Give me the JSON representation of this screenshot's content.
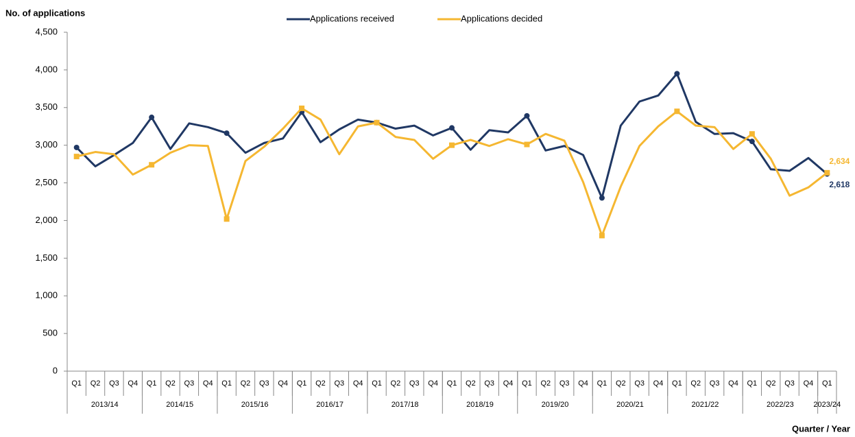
{
  "chart_data": {
    "type": "line",
    "y_axis_label": "No. of applications",
    "x_axis_label": "Quarter / Year",
    "groups": [
      {
        "label": "2013/14",
        "categories": [
          "Q1",
          "Q2",
          "Q3",
          "Q4"
        ]
      },
      {
        "label": "2014/15",
        "categories": [
          "Q1",
          "Q2",
          "Q3",
          "Q4"
        ]
      },
      {
        "label": "2015/16",
        "categories": [
          "Q1",
          "Q2",
          "Q3",
          "Q4"
        ]
      },
      {
        "label": "2016/17",
        "categories": [
          "Q1",
          "Q2",
          "Q3",
          "Q4"
        ]
      },
      {
        "label": "2017/18",
        "categories": [
          "Q1",
          "Q2",
          "Q3",
          "Q4"
        ]
      },
      {
        "label": "2018/19",
        "categories": [
          "Q1",
          "Q2",
          "Q3",
          "Q4"
        ]
      },
      {
        "label": "2019/20",
        "categories": [
          "Q1",
          "Q2",
          "Q3",
          "Q4"
        ]
      },
      {
        "label": "2020/21",
        "categories": [
          "Q1",
          "Q2",
          "Q3",
          "Q4"
        ]
      },
      {
        "label": "2021/22",
        "categories": [
          "Q1",
          "Q2",
          "Q3",
          "Q4"
        ]
      },
      {
        "label": "2022/23",
        "categories": [
          "Q1",
          "Q2",
          "Q3",
          "Q4"
        ]
      },
      {
        "label": "2023/24",
        "categories": [
          "Q1"
        ]
      }
    ],
    "series": [
      {
        "name": "Applications received",
        "color": "#203864",
        "marker": "circle",
        "values": [
          2970,
          2720,
          2870,
          3030,
          3370,
          2950,
          3290,
          3240,
          3160,
          2900,
          3030,
          3090,
          3440,
          3040,
          3210,
          3340,
          3300,
          3220,
          3260,
          3130,
          3230,
          2940,
          3200,
          3170,
          3390,
          2930,
          2990,
          2870,
          2300,
          3260,
          3580,
          3660,
          3950,
          3310,
          3150,
          3160,
          3050,
          2680,
          2660,
          2830,
          2618
        ],
        "value_labels": [
          null,
          null,
          null,
          null,
          null,
          null,
          null,
          null,
          null,
          null,
          null,
          null,
          null,
          null,
          null,
          null,
          null,
          null,
          null,
          null,
          null,
          null,
          null,
          null,
          null,
          null,
          null,
          null,
          null,
          null,
          null,
          null,
          null,
          null,
          null,
          null,
          null,
          null,
          null,
          null,
          "2,618"
        ]
      },
      {
        "name": "Applications decided",
        "color": "#F5B731",
        "marker": "square",
        "values": [
          2850,
          2910,
          2880,
          2610,
          2740,
          2900,
          3000,
          2990,
          2020,
          2790,
          2980,
          3220,
          3490,
          3340,
          2880,
          3250,
          3300,
          3110,
          3070,
          2820,
          3000,
          3070,
          2990,
          3080,
          3010,
          3150,
          3060,
          2510,
          1800,
          2450,
          2990,
          3250,
          3450,
          3260,
          3240,
          2950,
          3150,
          2820,
          2330,
          2440,
          2634
        ],
        "value_labels": [
          null,
          null,
          null,
          null,
          null,
          null,
          null,
          null,
          null,
          null,
          null,
          null,
          null,
          null,
          null,
          null,
          null,
          null,
          null,
          null,
          null,
          null,
          null,
          null,
          null,
          null,
          null,
          null,
          null,
          null,
          null,
          null,
          null,
          null,
          null,
          null,
          null,
          null,
          null,
          null,
          "2,634"
        ]
      }
    ],
    "ylim": [
      0,
      4500
    ],
    "yticks": [
      0,
      500,
      {
        "value": 1000,
        "label": "1,000"
      },
      {
        "value": 1500,
        "label": "1,500"
      },
      {
        "value": 2000,
        "label": "2,000"
      },
      {
        "value": 2500,
        "label": "2,500"
      },
      {
        "value": 3000,
        "label": "3,000"
      },
      {
        "value": 3500,
        "label": "3,500"
      },
      {
        "value": 4000,
        "label": "4,000"
      },
      {
        "value": 4500,
        "label": "4,500"
      }
    ],
    "grid": false,
    "legend": "top"
  }
}
